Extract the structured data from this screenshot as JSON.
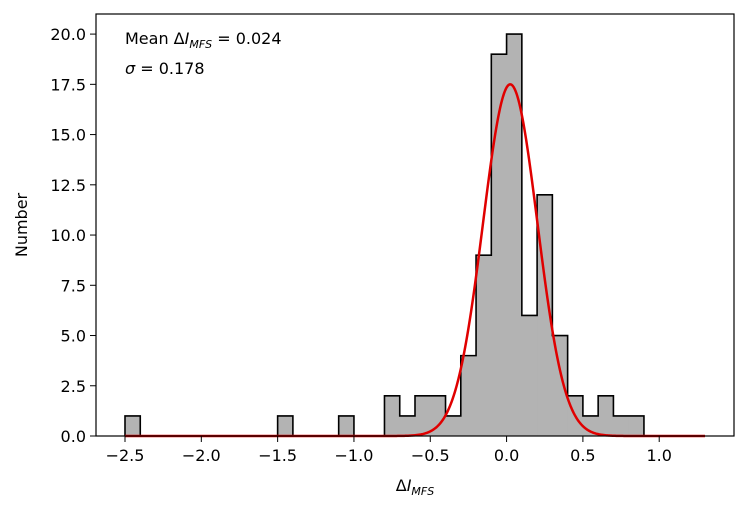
{
  "chart_data": {
    "type": "histogram",
    "title": "",
    "xlabel": "ΔI_MFS",
    "ylabel": "Number",
    "xlim": [
      -2.69,
      1.49
    ],
    "ylim": [
      0,
      21
    ],
    "xticks": [
      -2.5,
      -2.0,
      -1.5,
      -1.0,
      -0.5,
      0.0,
      0.5,
      1.0
    ],
    "xtick_labels": [
      "−2.5",
      "−2.0",
      "−1.5",
      "−1.0",
      "−0.5",
      "0.0",
      "0.5",
      "1.0"
    ],
    "yticks": [
      0,
      2.5,
      5,
      7.5,
      10,
      12.5,
      15,
      17.5,
      20
    ],
    "ytick_labels": [
      "0.0",
      "2.5",
      "5.0",
      "7.5",
      "10.0",
      "12.5",
      "15.0",
      "17.5",
      "20.0"
    ],
    "grid": false,
    "bin_width": 0.1,
    "bins": [
      {
        "x0": -2.5,
        "count": 1
      },
      {
        "x0": -2.4,
        "count": 0
      },
      {
        "x0": -2.3,
        "count": 0
      },
      {
        "x0": -2.2,
        "count": 0
      },
      {
        "x0": -2.1,
        "count": 0
      },
      {
        "x0": -2.0,
        "count": 0
      },
      {
        "x0": -1.9,
        "count": 0
      },
      {
        "x0": -1.8,
        "count": 0
      },
      {
        "x0": -1.7,
        "count": 0
      },
      {
        "x0": -1.6,
        "count": 0
      },
      {
        "x0": -1.5,
        "count": 1
      },
      {
        "x0": -1.4,
        "count": 0
      },
      {
        "x0": -1.3,
        "count": 0
      },
      {
        "x0": -1.2,
        "count": 0
      },
      {
        "x0": -1.1,
        "count": 1
      },
      {
        "x0": -1.0,
        "count": 0
      },
      {
        "x0": -0.9,
        "count": 0
      },
      {
        "x0": -0.8,
        "count": 2
      },
      {
        "x0": -0.7,
        "count": 1
      },
      {
        "x0": -0.6,
        "count": 2
      },
      {
        "x0": -0.5,
        "count": 2
      },
      {
        "x0": -0.4,
        "count": 1
      },
      {
        "x0": -0.3,
        "count": 4
      },
      {
        "x0": -0.2,
        "count": 9
      },
      {
        "x0": -0.1,
        "count": 19
      },
      {
        "x0": 0.0,
        "count": 20
      },
      {
        "x0": 0.1,
        "count": 6
      },
      {
        "x0": 0.2,
        "count": 12
      },
      {
        "x0": 0.3,
        "count": 5
      },
      {
        "x0": 0.4,
        "count": 2
      },
      {
        "x0": 0.5,
        "count": 1
      },
      {
        "x0": 0.6,
        "count": 2
      },
      {
        "x0": 0.7,
        "count": 1
      },
      {
        "x0": 0.8,
        "count": 1
      }
    ],
    "fit_curve": {
      "type": "gaussian",
      "mean": 0.024,
      "sigma": 0.178,
      "amplitude": 17.5,
      "x_range": [
        -2.5,
        1.3
      ],
      "color": "#e00000"
    },
    "annotations": [
      {
        "label": "Mean ΔI_MFS = 0.024",
        "value": 0.024
      },
      {
        "label": "σ = 0.178",
        "value": 0.178
      }
    ],
    "colors": {
      "bar_fill": "#b3b3b3",
      "bar_edge": "#000000",
      "curve": "#e00000"
    }
  }
}
